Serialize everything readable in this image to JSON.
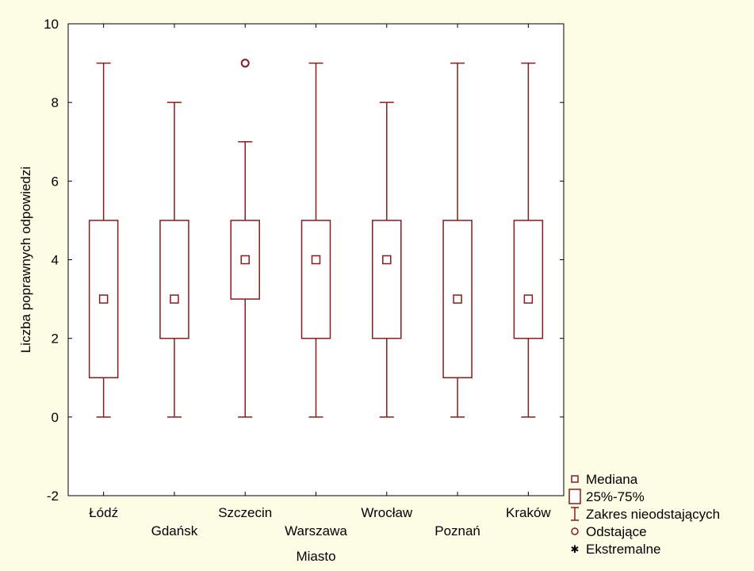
{
  "chart_data": {
    "type": "boxplot",
    "title": "",
    "xlabel": "Miasto",
    "ylabel": "Liczba poprawnych odpowiedzi",
    "ylim": [
      -2,
      10
    ],
    "yticks": [
      -2,
      0,
      2,
      4,
      6,
      8,
      10
    ],
    "grid": false,
    "legend_position": "bottom-right outside",
    "categories": [
      "Łódź",
      "Gdańsk",
      "Szczecin",
      "Warszawa",
      "Wrocław",
      "Poznań",
      "Kraków"
    ],
    "series": [
      {
        "category": "Łódź",
        "median": 3,
        "q1": 1,
        "q3": 5,
        "whisker_low": 0,
        "whisker_high": 9,
        "outliers": [],
        "extremes": []
      },
      {
        "category": "Gdańsk",
        "median": 3,
        "q1": 2,
        "q3": 5,
        "whisker_low": 0,
        "whisker_high": 8,
        "outliers": [],
        "extremes": []
      },
      {
        "category": "Szczecin",
        "median": 4,
        "q1": 3,
        "q3": 5,
        "whisker_low": 0,
        "whisker_high": 7,
        "outliers": [
          9
        ],
        "extremes": []
      },
      {
        "category": "Warszawa",
        "median": 4,
        "q1": 2,
        "q3": 5,
        "whisker_low": 0,
        "whisker_high": 9,
        "outliers": [],
        "extremes": []
      },
      {
        "category": "Wrocław",
        "median": 4,
        "q1": 2,
        "q3": 5,
        "whisker_low": 0,
        "whisker_high": 8,
        "outliers": [],
        "extremes": []
      },
      {
        "category": "Poznań",
        "median": 3,
        "q1": 1,
        "q3": 5,
        "whisker_low": 0,
        "whisker_high": 9,
        "outliers": [],
        "extremes": []
      },
      {
        "category": "Kraków",
        "median": 3,
        "q1": 2,
        "q3": 5,
        "whisker_low": 0,
        "whisker_high": 9,
        "outliers": [],
        "extremes": []
      }
    ],
    "legend": [
      {
        "symbol": "median-square",
        "label": "Mediana"
      },
      {
        "symbol": "box",
        "label": "25%-75%"
      },
      {
        "symbol": "whisker",
        "label": "Zakres nieodstających"
      },
      {
        "symbol": "circle",
        "label": "Odstające"
      },
      {
        "symbol": "asterisk",
        "label": "Ekstremalne"
      }
    ],
    "colors": {
      "series": "#8b1a1a",
      "background": "#fdfde6",
      "plot_area": "#ffffff",
      "axis": "#000000"
    }
  }
}
